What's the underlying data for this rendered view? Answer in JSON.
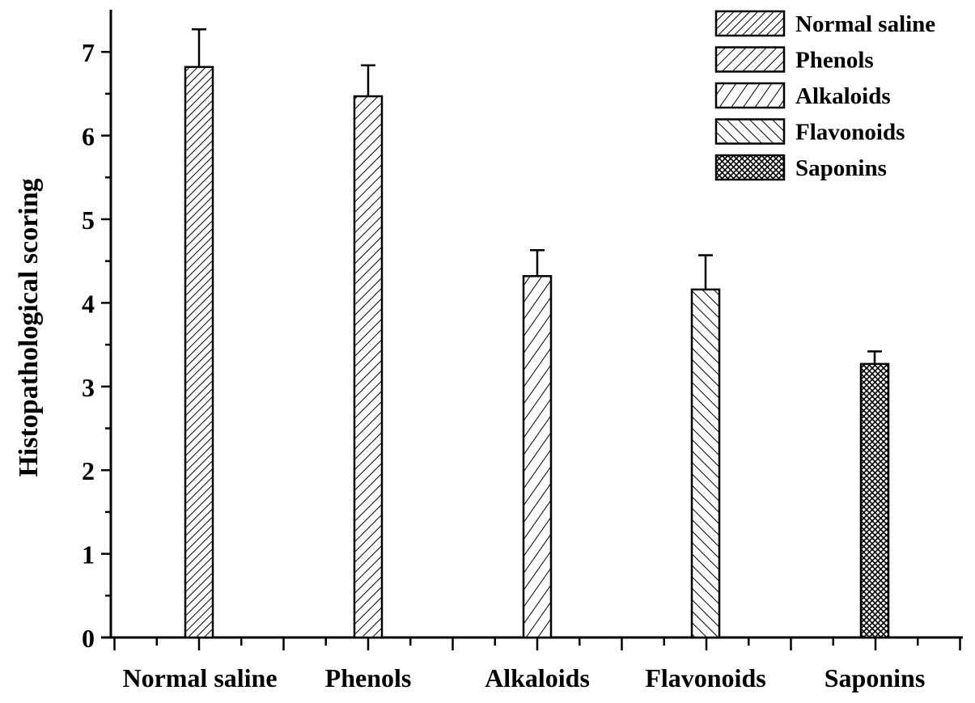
{
  "chart_data": {
    "type": "bar",
    "title": "",
    "xlabel": "",
    "ylabel": "Histopathological scoring",
    "categories": [
      "Normal saline",
      "Phenols",
      "Alkaloids",
      "Flavonoids",
      "Saponins"
    ],
    "values": [
      6.82,
      6.47,
      4.32,
      4.16,
      3.27
    ],
    "errors": [
      0.45,
      0.37,
      0.31,
      0.41,
      0.15
    ],
    "ylim": [
      0,
      7.5
    ],
    "yticks": [
      "0",
      "1",
      "2",
      "3",
      "4",
      "5",
      "6",
      "7"
    ],
    "legend": {
      "placement": "top-right",
      "entries": [
        "Normal saline",
        "Phenols",
        "Alkaloids",
        "Flavonoids",
        "Saponins"
      ]
    },
    "grid": false,
    "bar_color": "#ffffff",
    "line_color": "#000000"
  }
}
